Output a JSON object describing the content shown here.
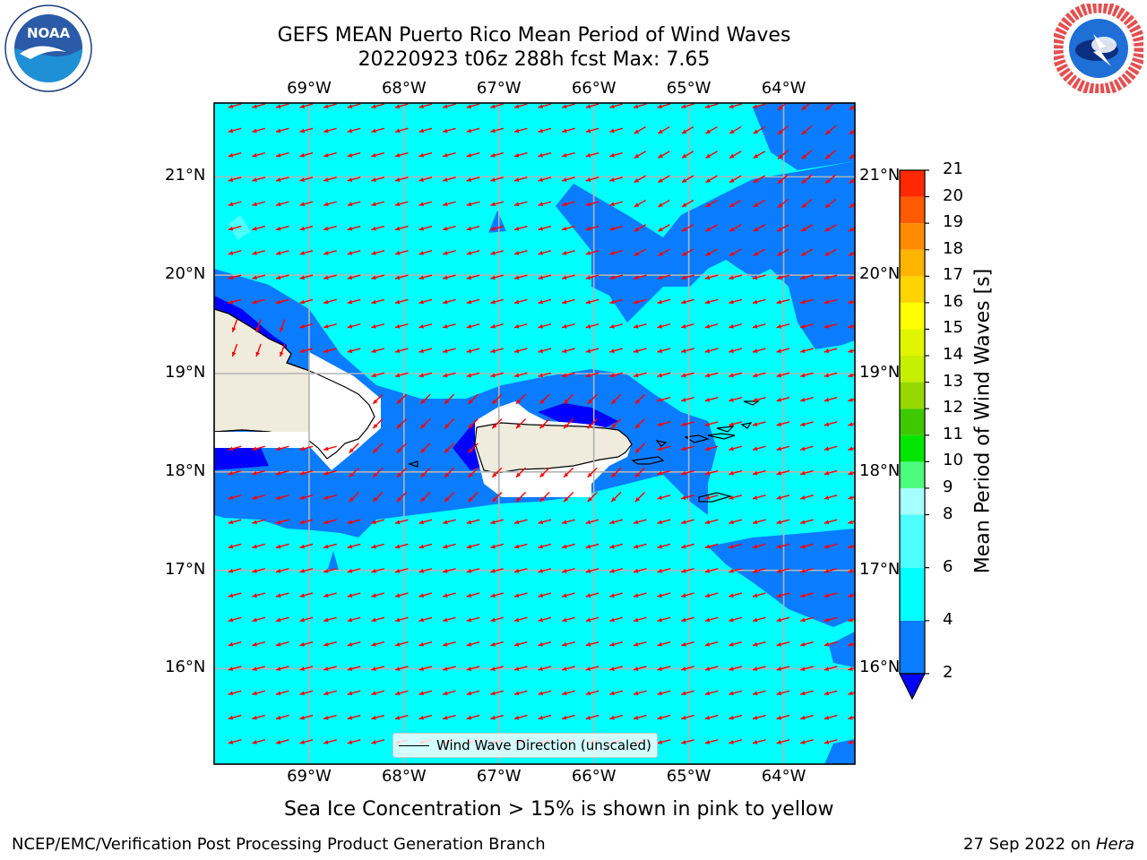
{
  "title": {
    "line1": "GEFS MEAN Puerto Rico Mean Period of Wind Waves",
    "line2": "20220923 t06z 288h fcst   Max: 7.65"
  },
  "logos": {
    "left": "noaa-logo",
    "right": "nws-logo",
    "left_text": "NOAA"
  },
  "map": {
    "lon_labels": [
      "69°W",
      "68°W",
      "67°W",
      "66°W",
      "65°W",
      "64°W"
    ],
    "lat_labels": [
      "21°N",
      "20°N",
      "19°N",
      "18°N",
      "17°N",
      "16°N"
    ],
    "lon_values": [
      -69,
      -68,
      -67,
      -66,
      -65,
      -64
    ],
    "lat_values": [
      21,
      20,
      19,
      18,
      17,
      16
    ],
    "lon_range": [
      -70.0,
      -63.25
    ],
    "lat_range": [
      15.03,
      21.75
    ],
    "grid": true,
    "land_color": "#efecdd",
    "vector_color": "#ff0000",
    "legend_label": "Wind Wave Direction (unscaled)"
  },
  "colorbar": {
    "label": "Mean Period of Wind Waves [s]",
    "tick_labels": [
      "2",
      "4",
      "6",
      "8",
      "9",
      "10",
      "11",
      "12",
      "13",
      "14",
      "15",
      "16",
      "17",
      "18",
      "19",
      "20",
      "21"
    ],
    "levels": [
      2,
      4,
      6,
      8,
      9,
      10,
      11,
      12,
      13,
      14,
      15,
      16,
      17,
      18,
      19,
      20,
      21
    ],
    "colors": [
      "#0a7cff",
      "#00ffff",
      "#4dffff",
      "#a6ffff",
      "#4cfc7d",
      "#00e600",
      "#3ec800",
      "#97d800",
      "#c6f000",
      "#e1f500",
      "#ffff00",
      "#ffd400",
      "#ffb400",
      "#ff8c00",
      "#ff5a00",
      "#ff2800",
      "#ff0000"
    ],
    "under_color": "#0000ff"
  },
  "note": "Sea Ice Concentration > 15% is shown in pink to yellow",
  "footer": {
    "left": "NCEP/EMC/Verification Post Processing Product Generation Branch",
    "right_date": "27 Sep 2022 on ",
    "right_host": "Hera"
  }
}
